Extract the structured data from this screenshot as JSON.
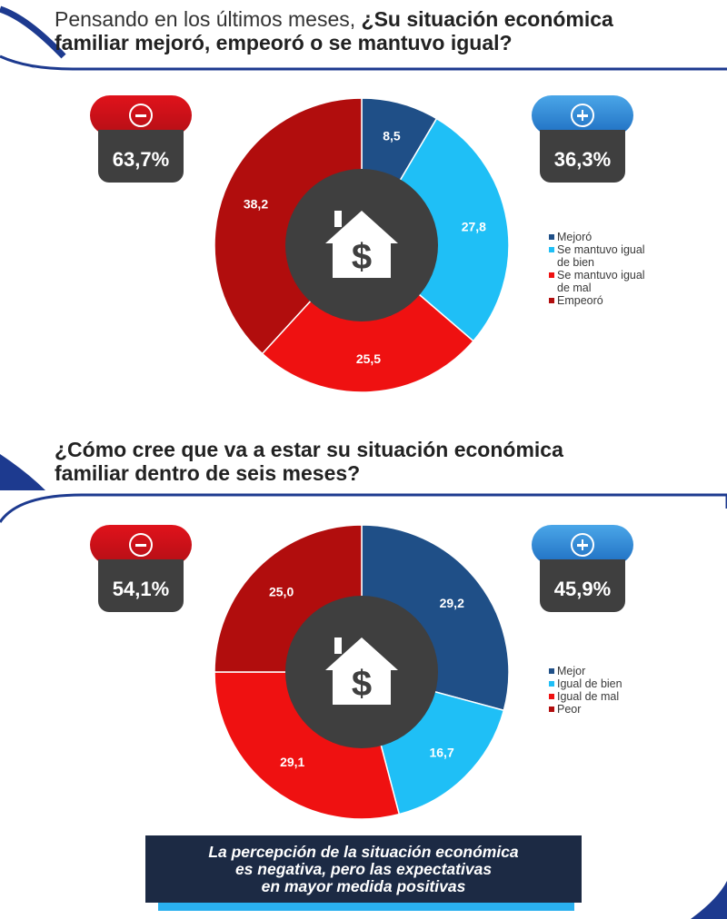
{
  "colors": {
    "dark_blue": "#1f4f87",
    "light_blue": "#1fbff6",
    "red": "#ef1111",
    "dark_red": "#b10d0d",
    "center_circle": "#3f3f3f",
    "callout_bg": "#1c2a44",
    "callout_strip": "#2ab0ef",
    "accent_navy": "#1d3a8f"
  },
  "header": {
    "q1_line1_light": "Pensando en los últimos meses, ",
    "q1_line1_bold": "¿Su situación económica",
    "q1_line2": "familiar mejoró, empeoró o se mantuvo igual?",
    "q2_line1": "¿Cómo cree que va a estar su situación económica",
    "q2_line2": "familiar dentro de seis meses?"
  },
  "badges": {
    "minus_icon": "minus-circle-icon",
    "plus_icon": "plus-circle-icon",
    "q1_negative": "63,7%",
    "q1_positive": "36,3%",
    "q2_negative": "54,1%",
    "q2_positive": "45,9%"
  },
  "center_icon": "house-dollar-icon",
  "center_symbol": "$",
  "chart_data": [
    {
      "type": "pie",
      "title": "Pensando en los últimos meses, ¿Su situación económica familiar mejoró, empeoró o se mantuvo igual?",
      "categories": [
        "Mejoró",
        "Se mantuvo igual de bien",
        "Se mantuvo igual de mal",
        "Empeoró"
      ],
      "legend_labels": [
        "Mejoró",
        "Se mantuvo igual\nde bien",
        "Se mantuvo igual\nde mal",
        "Empeoró"
      ],
      "values": [
        8.5,
        27.8,
        25.5,
        38.2
      ],
      "value_labels": [
        "8,5",
        "27,8",
        "25,5",
        "38,2"
      ],
      "colors": [
        "#1f4f87",
        "#1fbff6",
        "#ef1111",
        "#b10d0d"
      ],
      "legend_position": "right"
    },
    {
      "type": "pie",
      "title": "¿Cómo cree que va a estar su situación económica familiar dentro de seis meses?",
      "categories": [
        "Mejor",
        "Igual de bien",
        "Igual de mal",
        "Peor"
      ],
      "legend_labels": [
        "Mejor",
        "Igual de bien",
        "Igual de mal",
        "Peor"
      ],
      "values": [
        29.2,
        16.7,
        29.1,
        25.0
      ],
      "value_labels": [
        "29,2",
        "16,7",
        "29,1",
        "25,0"
      ],
      "colors": [
        "#1f4f87",
        "#1fbff6",
        "#ef1111",
        "#b10d0d"
      ],
      "legend_position": "right"
    }
  ],
  "callout": {
    "text": "La percepción de la situación económica\nes negativa, pero las expectativas\nen mayor medida positivas"
  }
}
